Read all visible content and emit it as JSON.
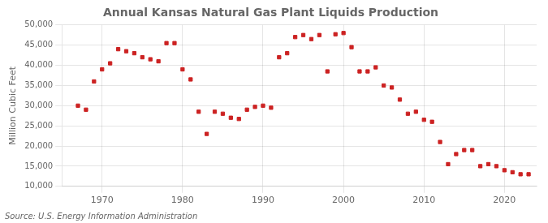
{
  "chart_data": {
    "type": "scatter",
    "title": "Annual Kansas Natural Gas Plant Liquids Production",
    "ylabel": "Million Cubic Feet",
    "annotations": [
      "Source: U.S. Energy Information Administration"
    ],
    "color": "#cc2222",
    "marker": "square",
    "x": [
      1967,
      1968,
      1969,
      1970,
      1971,
      1972,
      1973,
      1974,
      1975,
      1976,
      1977,
      1978,
      1979,
      1980,
      1981,
      1982,
      1983,
      1984,
      1985,
      1986,
      1987,
      1988,
      1989,
      1990,
      1991,
      1992,
      1993,
      1994,
      1995,
      1996,
      1997,
      1998,
      1999,
      2000,
      2001,
      2002,
      2003,
      2004,
      2005,
      2006,
      2007,
      2008,
      2009,
      2010,
      2011,
      2012,
      2013,
      2014,
      2015,
      2016,
      2017,
      2018,
      2019,
      2020,
      2021,
      2022,
      2023
    ],
    "values": [
      30000,
      29000,
      36000,
      39000,
      40500,
      44000,
      43500,
      43000,
      42000,
      41500,
      41000,
      45500,
      45500,
      39000,
      36500,
      28500,
      23000,
      28500,
      28000,
      27000,
      26700,
      29000,
      29700,
      30000,
      29500,
      42000,
      43000,
      47000,
      47500,
      46500,
      47500,
      38500,
      47700,
      48000,
      44500,
      38500,
      38500,
      39500,
      35000,
      34500,
      31500,
      28000,
      28500,
      26500,
      26000,
      21000,
      15500,
      18000,
      19000,
      19000,
      15000,
      15500,
      15000,
      14000,
      13500,
      13000,
      13000
    ],
    "xlim": [
      1965,
      2024
    ],
    "xticks": [
      1970,
      1980,
      1990,
      2000,
      2010,
      2020
    ],
    "ylim": [
      10000,
      50000
    ],
    "yticks": [
      {
        "value": 10000,
        "label": "10,000"
      },
      {
        "value": 15000,
        "label": "15,000"
      },
      {
        "value": 20000,
        "label": "20,000"
      },
      {
        "value": 25000,
        "label": "25,000"
      },
      {
        "value": 30000,
        "label": "30,000"
      },
      {
        "value": 35000,
        "label": "35,000"
      },
      {
        "value": 40000,
        "label": "40,000"
      },
      {
        "value": 45000,
        "label": "45,000"
      },
      {
        "value": 50000,
        "label": "50,000"
      }
    ],
    "grid": true
  }
}
